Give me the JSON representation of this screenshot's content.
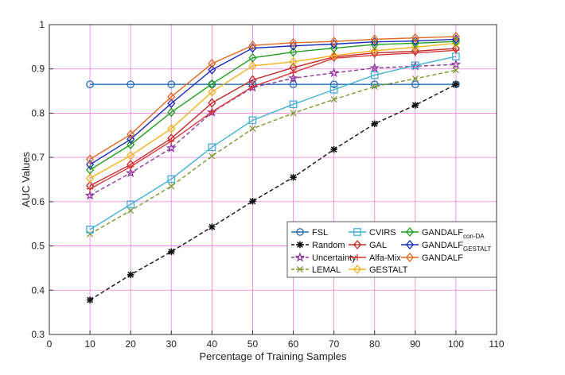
{
  "chart_data": {
    "type": "line",
    "title": "",
    "xlabel": "Percentage of Training Samples",
    "ylabel": "AUC Values",
    "xlim": [
      0,
      110
    ],
    "ylim": [
      0.3,
      1.0
    ],
    "xticks": [
      0,
      10,
      20,
      30,
      40,
      50,
      60,
      70,
      80,
      90,
      100,
      110
    ],
    "yticks": [
      0.3,
      0.4,
      0.5,
      0.6,
      0.7,
      0.8,
      0.9,
      1
    ],
    "ytick_labels": [
      "0.3",
      "0.4",
      "0.5",
      "0.6",
      "0.7",
      "0.8",
      "0.9",
      "1"
    ],
    "grid": true,
    "grid_color": "#f07ce8",
    "legend_position": "lower-right",
    "x": [
      10,
      20,
      30,
      40,
      50,
      60,
      70,
      80,
      90,
      100
    ],
    "series": [
      {
        "name": "FSL",
        "color": "#1f6fb5",
        "marker": "circle",
        "dash": "solid",
        "values": [
          0.865,
          0.865,
          0.865,
          0.865,
          0.865,
          0.865,
          0.865,
          0.865,
          0.865,
          0.865
        ]
      },
      {
        "name": "Random",
        "color": "#111111",
        "marker": "asterisk",
        "dash": "dashed",
        "values": [
          0.378,
          0.435,
          0.487,
          0.543,
          0.601,
          0.655,
          0.718,
          0.776,
          0.818,
          0.865
        ]
      },
      {
        "name": "Uncertainty",
        "color": "#8e3b9e",
        "marker": "star",
        "dash": "dashed",
        "values": [
          0.614,
          0.665,
          0.721,
          0.802,
          0.858,
          0.879,
          0.891,
          0.902,
          0.906,
          0.91
        ]
      },
      {
        "name": "LEMAL",
        "color": "#7a9a2e",
        "marker": "x",
        "dash": "dashed",
        "values": [
          0.527,
          0.58,
          0.635,
          0.703,
          0.765,
          0.8,
          0.831,
          0.86,
          0.878,
          0.897
        ]
      },
      {
        "name": "CVIRS",
        "color": "#3fb0d8",
        "marker": "square",
        "dash": "solid",
        "values": [
          0.537,
          0.594,
          0.651,
          0.723,
          0.784,
          0.82,
          0.853,
          0.886,
          0.908,
          0.928
        ]
      },
      {
        "name": "GAL",
        "color": "#c42828",
        "marker": "diamond",
        "dash": "solid",
        "values": [
          0.636,
          0.684,
          0.743,
          0.823,
          0.875,
          0.903,
          0.927,
          0.936,
          0.94,
          0.946
        ]
      },
      {
        "name": "Alfa-Mix",
        "color": "#d83838",
        "marker": "plus",
        "dash": "solid",
        "values": [
          0.629,
          0.679,
          0.737,
          0.803,
          0.86,
          0.892,
          0.924,
          0.931,
          0.936,
          0.942
        ]
      },
      {
        "name": "GESTALT",
        "color": "#f2b320",
        "marker": "diamond",
        "dash": "solid",
        "values": [
          0.653,
          0.704,
          0.765,
          0.848,
          0.907,
          0.916,
          0.93,
          0.941,
          0.949,
          0.958
        ]
      },
      {
        "name": "GANDALF_con-DA",
        "label_main": "GANDALF",
        "label_sub": "con-DA",
        "color": "#1ea01e",
        "marker": "diamond",
        "dash": "solid",
        "values": [
          0.672,
          0.729,
          0.802,
          0.866,
          0.925,
          0.938,
          0.947,
          0.955,
          0.958,
          0.962
        ]
      },
      {
        "name": "GANDALF_GESTALT",
        "label_main": "GANDALF",
        "label_sub": "GESTALT",
        "color": "#1a2cb8",
        "marker": "diamond",
        "dash": "solid",
        "values": [
          0.684,
          0.741,
          0.822,
          0.898,
          0.947,
          0.952,
          0.956,
          0.961,
          0.963,
          0.967
        ]
      },
      {
        "name": "GANDALF",
        "color": "#e06a22",
        "marker": "diamond",
        "dash": "solid",
        "values": [
          0.696,
          0.752,
          0.837,
          0.912,
          0.953,
          0.959,
          0.962,
          0.967,
          0.97,
          0.973
        ]
      }
    ],
    "legend_columns": [
      [
        "FSL",
        "Random",
        "Uncertainty",
        "LEMAL"
      ],
      [
        "CVIRS",
        "GAL",
        "Alfa-Mix",
        "GESTALT"
      ],
      [
        "GANDALF_con-DA",
        "GANDALF_GESTALT",
        "GANDALF"
      ]
    ]
  }
}
